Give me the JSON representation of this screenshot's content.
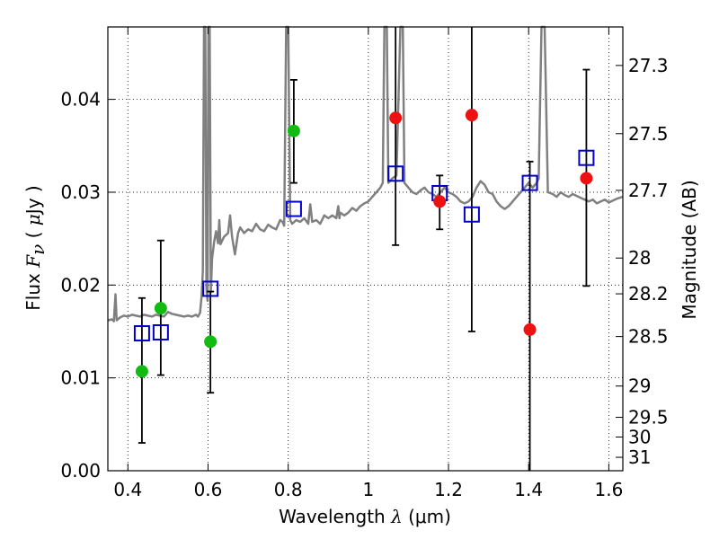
{
  "chart_data": {
    "type": "scatter",
    "xlabel": {
      "text": "Wavelength  ",
      "symbol": "λ",
      "unit": " (μm)"
    },
    "ylabel": {
      "text": "Flux  ",
      "symbol": "F",
      "subscript": "ν",
      "unit_open": "  ( ",
      "unit_mu": "μ",
      "unit_close": "Jy )"
    },
    "y2label": "Magnitude (AB)",
    "xlim": [
      0.35,
      1.635
    ],
    "ylim": [
      0.0,
      0.0478
    ],
    "grid": true,
    "x_ticks": [
      0.4,
      0.6,
      0.8,
      1.0,
      1.2,
      1.4,
      1.6
    ],
    "x_tick_labels": [
      "0.4",
      "0.6",
      "0.8",
      "1",
      "1.2",
      "1.4",
      "1.6"
    ],
    "y_ticks": [
      0.0,
      0.01,
      0.02,
      0.03,
      0.04
    ],
    "y_tick_labels": [
      "0.00",
      "0.01",
      "0.02",
      "0.03",
      "0.04"
    ],
    "mag_ticks": [
      27.3,
      27.5,
      27.7,
      28,
      28.2,
      28.5,
      29,
      29.5,
      30,
      31
    ],
    "mag_tick_labels": [
      "27.3",
      "27.5",
      "27.7",
      "28",
      "28.2",
      "28.5",
      "29",
      "29.5",
      "30",
      "31"
    ],
    "colors": {
      "spectrum": "#808080",
      "green_points": "#11bb11",
      "red_points": "#ee1111",
      "model_squares": "#0000cc",
      "error_bars": "#000000"
    },
    "spectrum": [
      [
        0.35,
        0.0162
      ],
      [
        0.36,
        0.0163
      ],
      [
        0.365,
        0.0161
      ],
      [
        0.369,
        0.019
      ],
      [
        0.372,
        0.0162
      ],
      [
        0.38,
        0.0165
      ],
      [
        0.39,
        0.0167
      ],
      [
        0.4,
        0.0166
      ],
      [
        0.41,
        0.0168
      ],
      [
        0.42,
        0.0167
      ],
      [
        0.43,
        0.0166
      ],
      [
        0.44,
        0.0168
      ],
      [
        0.45,
        0.0167
      ],
      [
        0.46,
        0.0166
      ],
      [
        0.47,
        0.0168
      ],
      [
        0.48,
        0.0167
      ],
      [
        0.49,
        0.0166
      ],
      [
        0.5,
        0.0171
      ],
      [
        0.51,
        0.0169
      ],
      [
        0.52,
        0.0168
      ],
      [
        0.53,
        0.0167
      ],
      [
        0.54,
        0.0166
      ],
      [
        0.55,
        0.0167
      ],
      [
        0.56,
        0.0166
      ],
      [
        0.57,
        0.0168
      ],
      [
        0.575,
        0.0166
      ],
      [
        0.58,
        0.017
      ],
      [
        0.584,
        0.0188
      ],
      [
        0.587,
        0.0215
      ],
      [
        0.59,
        0.0478
      ],
      [
        0.593,
        0.0478
      ],
      [
        0.596,
        0.0196
      ],
      [
        0.599,
        0.0183
      ],
      [
        0.601,
        0.0478
      ],
      [
        0.604,
        0.0478
      ],
      [
        0.607,
        0.0192
      ],
      [
        0.61,
        0.0228
      ],
      [
        0.615,
        0.0246
      ],
      [
        0.62,
        0.0258
      ],
      [
        0.625,
        0.0245
      ],
      [
        0.628,
        0.027
      ],
      [
        0.631,
        0.0244
      ],
      [
        0.64,
        0.0252
      ],
      [
        0.65,
        0.0256
      ],
      [
        0.655,
        0.0275
      ],
      [
        0.66,
        0.0252
      ],
      [
        0.667,
        0.0233
      ],
      [
        0.675,
        0.0256
      ],
      [
        0.68,
        0.0262
      ],
      [
        0.69,
        0.0256
      ],
      [
        0.7,
        0.026
      ],
      [
        0.71,
        0.0258
      ],
      [
        0.72,
        0.0266
      ],
      [
        0.73,
        0.026
      ],
      [
        0.74,
        0.0258
      ],
      [
        0.75,
        0.0265
      ],
      [
        0.76,
        0.0262
      ],
      [
        0.77,
        0.026
      ],
      [
        0.78,
        0.027
      ],
      [
        0.786,
        0.0268
      ],
      [
        0.79,
        0.0264
      ],
      [
        0.795,
        0.0478
      ],
      [
        0.8,
        0.0478
      ],
      [
        0.805,
        0.027
      ],
      [
        0.81,
        0.0266
      ],
      [
        0.82,
        0.027
      ],
      [
        0.83,
        0.0268
      ],
      [
        0.84,
        0.0272
      ],
      [
        0.85,
        0.0266
      ],
      [
        0.855,
        0.0287
      ],
      [
        0.86,
        0.0268
      ],
      [
        0.87,
        0.027
      ],
      [
        0.88,
        0.0266
      ],
      [
        0.89,
        0.0275
      ],
      [
        0.9,
        0.0272
      ],
      [
        0.91,
        0.0275
      ],
      [
        0.92,
        0.0272
      ],
      [
        0.925,
        0.0285
      ],
      [
        0.928,
        0.0272
      ],
      [
        0.93,
        0.0278
      ],
      [
        0.94,
        0.0275
      ],
      [
        0.95,
        0.0278
      ],
      [
        0.96,
        0.0283
      ],
      [
        0.97,
        0.028
      ],
      [
        0.98,
        0.0285
      ],
      [
        0.99,
        0.0288
      ],
      [
        1.0,
        0.029
      ],
      [
        1.01,
        0.0295
      ],
      [
        1.02,
        0.03
      ],
      [
        1.03,
        0.0305
      ],
      [
        1.036,
        0.031
      ],
      [
        1.04,
        0.0478
      ],
      [
        1.046,
        0.0478
      ],
      [
        1.05,
        0.031
      ],
      [
        1.06,
        0.0315
      ],
      [
        1.07,
        0.0318
      ],
      [
        1.08,
        0.0478
      ],
      [
        1.086,
        0.0478
      ],
      [
        1.09,
        0.031
      ],
      [
        1.1,
        0.0305
      ],
      [
        1.11,
        0.03
      ],
      [
        1.12,
        0.0298
      ],
      [
        1.13,
        0.0302
      ],
      [
        1.14,
        0.0305
      ],
      [
        1.15,
        0.03
      ],
      [
        1.16,
        0.0298
      ],
      [
        1.17,
        0.0295
      ],
      [
        1.18,
        0.03
      ],
      [
        1.19,
        0.0305
      ],
      [
        1.2,
        0.03
      ],
      [
        1.21,
        0.0298
      ],
      [
        1.22,
        0.0295
      ],
      [
        1.23,
        0.029
      ],
      [
        1.24,
        0.0288
      ],
      [
        1.25,
        0.029
      ],
      [
        1.26,
        0.0295
      ],
      [
        1.27,
        0.0305
      ],
      [
        1.28,
        0.0312
      ],
      [
        1.29,
        0.0308
      ],
      [
        1.3,
        0.03
      ],
      [
        1.31,
        0.0298
      ],
      [
        1.32,
        0.029
      ],
      [
        1.33,
        0.0285
      ],
      [
        1.34,
        0.0282
      ],
      [
        1.35,
        0.0285
      ],
      [
        1.36,
        0.029
      ],
      [
        1.37,
        0.0295
      ],
      [
        1.38,
        0.03
      ],
      [
        1.39,
        0.0305
      ],
      [
        1.4,
        0.031
      ],
      [
        1.41,
        0.0305
      ],
      [
        1.42,
        0.031
      ],
      [
        1.425,
        0.0315
      ],
      [
        1.432,
        0.0478
      ],
      [
        1.44,
        0.0478
      ],
      [
        1.448,
        0.03
      ],
      [
        1.46,
        0.0298
      ],
      [
        1.47,
        0.0295
      ],
      [
        1.48,
        0.03
      ],
      [
        1.49,
        0.0297
      ],
      [
        1.5,
        0.0295
      ],
      [
        1.51,
        0.0298
      ],
      [
        1.52,
        0.0296
      ],
      [
        1.53,
        0.0294
      ],
      [
        1.54,
        0.0292
      ],
      [
        1.55,
        0.029
      ],
      [
        1.56,
        0.0292
      ],
      [
        1.57,
        0.0288
      ],
      [
        1.58,
        0.029
      ],
      [
        1.59,
        0.0292
      ],
      [
        1.6,
        0.0289
      ],
      [
        1.61,
        0.0291
      ],
      [
        1.62,
        0.0293
      ],
      [
        1.635,
        0.0295
      ]
    ],
    "green_points": [
      {
        "x": 0.435,
        "y": 0.0107,
        "err_low": 0.003,
        "err_high": 0.0186
      },
      {
        "x": 0.482,
        "y": 0.0175,
        "err_low": 0.0103,
        "err_high": 0.0248
      },
      {
        "x": 0.606,
        "y": 0.0139,
        "err_low": 0.0084,
        "err_high": 0.0193
      },
      {
        "x": 0.814,
        "y": 0.0366,
        "err_low": 0.031,
        "err_high": 0.0421
      }
    ],
    "red_points": [
      {
        "x": 1.068,
        "y": 0.038,
        "err_low": 0.0243,
        "err_high": 0.0478
      },
      {
        "x": 1.178,
        "y": 0.029,
        "err_low": 0.026,
        "err_high": 0.0318
      },
      {
        "x": 1.258,
        "y": 0.0383,
        "err_low": 0.015,
        "err_high": 0.0478
      },
      {
        "x": 1.403,
        "y": 0.0152,
        "err_low": 0.0,
        "err_high": 0.0333
      },
      {
        "x": 1.544,
        "y": 0.0315,
        "err_low": 0.0199,
        "err_high": 0.0432
      }
    ],
    "model_squares": [
      {
        "x": 0.435,
        "y": 0.0148
      },
      {
        "x": 0.482,
        "y": 0.0149
      },
      {
        "x": 0.606,
        "y": 0.0196
      },
      {
        "x": 0.814,
        "y": 0.0282
      },
      {
        "x": 1.068,
        "y": 0.032
      },
      {
        "x": 1.178,
        "y": 0.0299
      },
      {
        "x": 1.258,
        "y": 0.0276
      },
      {
        "x": 1.403,
        "y": 0.031
      },
      {
        "x": 1.544,
        "y": 0.0337
      }
    ]
  }
}
